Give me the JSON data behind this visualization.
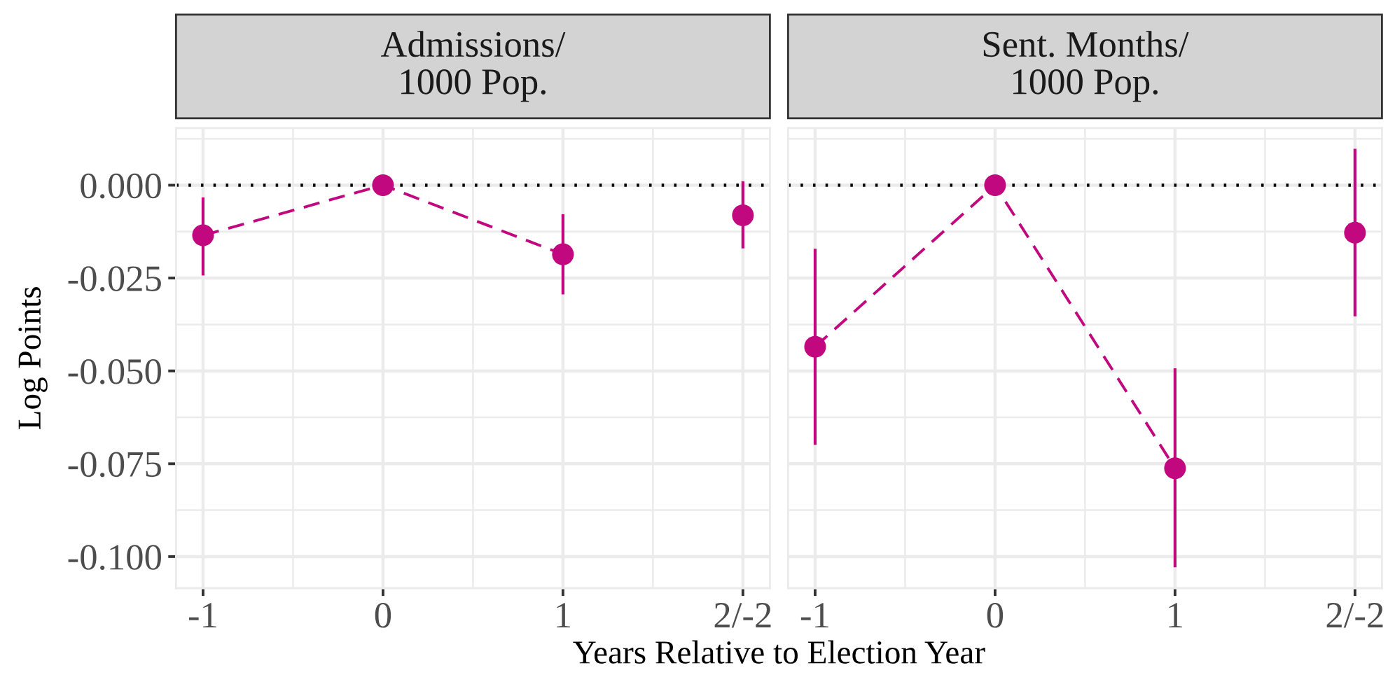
{
  "chart_data": [
    {
      "type": "scatter",
      "title": "Admissions/\n1000 Pop.",
      "xlabel": "Years Relative to Election Year",
      "ylabel": "Log Points",
      "xlim": [
        -1.15,
        2.15
      ],
      "xticks": [
        {
          "value": -1,
          "label": "-1"
        },
        {
          "value": 0,
          "label": "0"
        },
        {
          "value": 1,
          "label": "1"
        },
        {
          "value": 2,
          "label": "2/-2"
        }
      ],
      "ylim": [
        -0.1085,
        0.0154
      ],
      "yticks": [
        {
          "value": -0.1,
          "label": "-0.100"
        },
        {
          "value": -0.075,
          "label": "-0.075"
        },
        {
          "value": -0.05,
          "label": "-0.050"
        },
        {
          "value": -0.025,
          "label": "-0.025"
        },
        {
          "value": 0,
          "label": "0.000"
        }
      ],
      "grid": true,
      "ref_lines": [
        {
          "axis": "y",
          "value": 0,
          "color": "#000000",
          "line_style": "dotted"
        }
      ],
      "series": [
        {
          "type": "line",
          "x": [
            -1,
            0,
            1
          ],
          "values": [
            -0.0135,
            0,
            -0.0186
          ],
          "color": "#c1087f",
          "line_style": "dashed",
          "marker": "none"
        },
        {
          "x": [
            -1,
            0,
            1,
            2
          ],
          "values": [
            -0.0135,
            0,
            -0.0186,
            -0.0081
          ],
          "errors": [
            [
              -0.0243,
              -0.0033
            ],
            null,
            [
              -0.0294,
              -0.0078
            ],
            [
              -0.017,
              0.0011
            ]
          ],
          "color": "#c1087f",
          "marker": "circle"
        }
      ]
    },
    {
      "type": "scatter",
      "title": "Sent. Months/\n1000 Pop.",
      "xlim": [
        -1.15,
        2.15
      ],
      "xticks": [
        {
          "value": -1,
          "label": "-1"
        },
        {
          "value": 0,
          "label": "0"
        },
        {
          "value": 1,
          "label": "1"
        },
        {
          "value": 2,
          "label": "2/-2"
        }
      ],
      "ylim": [
        -0.1085,
        0.0154
      ],
      "yticks": [
        -0.1,
        -0.075,
        -0.05,
        -0.025,
        0
      ],
      "tick_labels": "x",
      "grid": true,
      "ref_lines": [
        {
          "axis": "y",
          "value": 0,
          "color": "#000000",
          "line_style": "dotted"
        }
      ],
      "series": [
        {
          "type": "line",
          "x": [
            -1,
            0,
            1
          ],
          "values": [
            -0.0435,
            0,
            -0.0762
          ],
          "color": "#c1087f",
          "line_style": "dashed",
          "marker": "none"
        },
        {
          "x": [
            -1,
            0,
            1,
            2
          ],
          "values": [
            -0.0435,
            0,
            -0.0762,
            -0.0128
          ],
          "errors": [
            [
              -0.0699,
              -0.0171
            ],
            null,
            [
              -0.1029,
              -0.0493
            ],
            [
              -0.0353,
              0.0098
            ]
          ],
          "color": "#c1087f",
          "marker": "circle"
        }
      ]
    }
  ]
}
